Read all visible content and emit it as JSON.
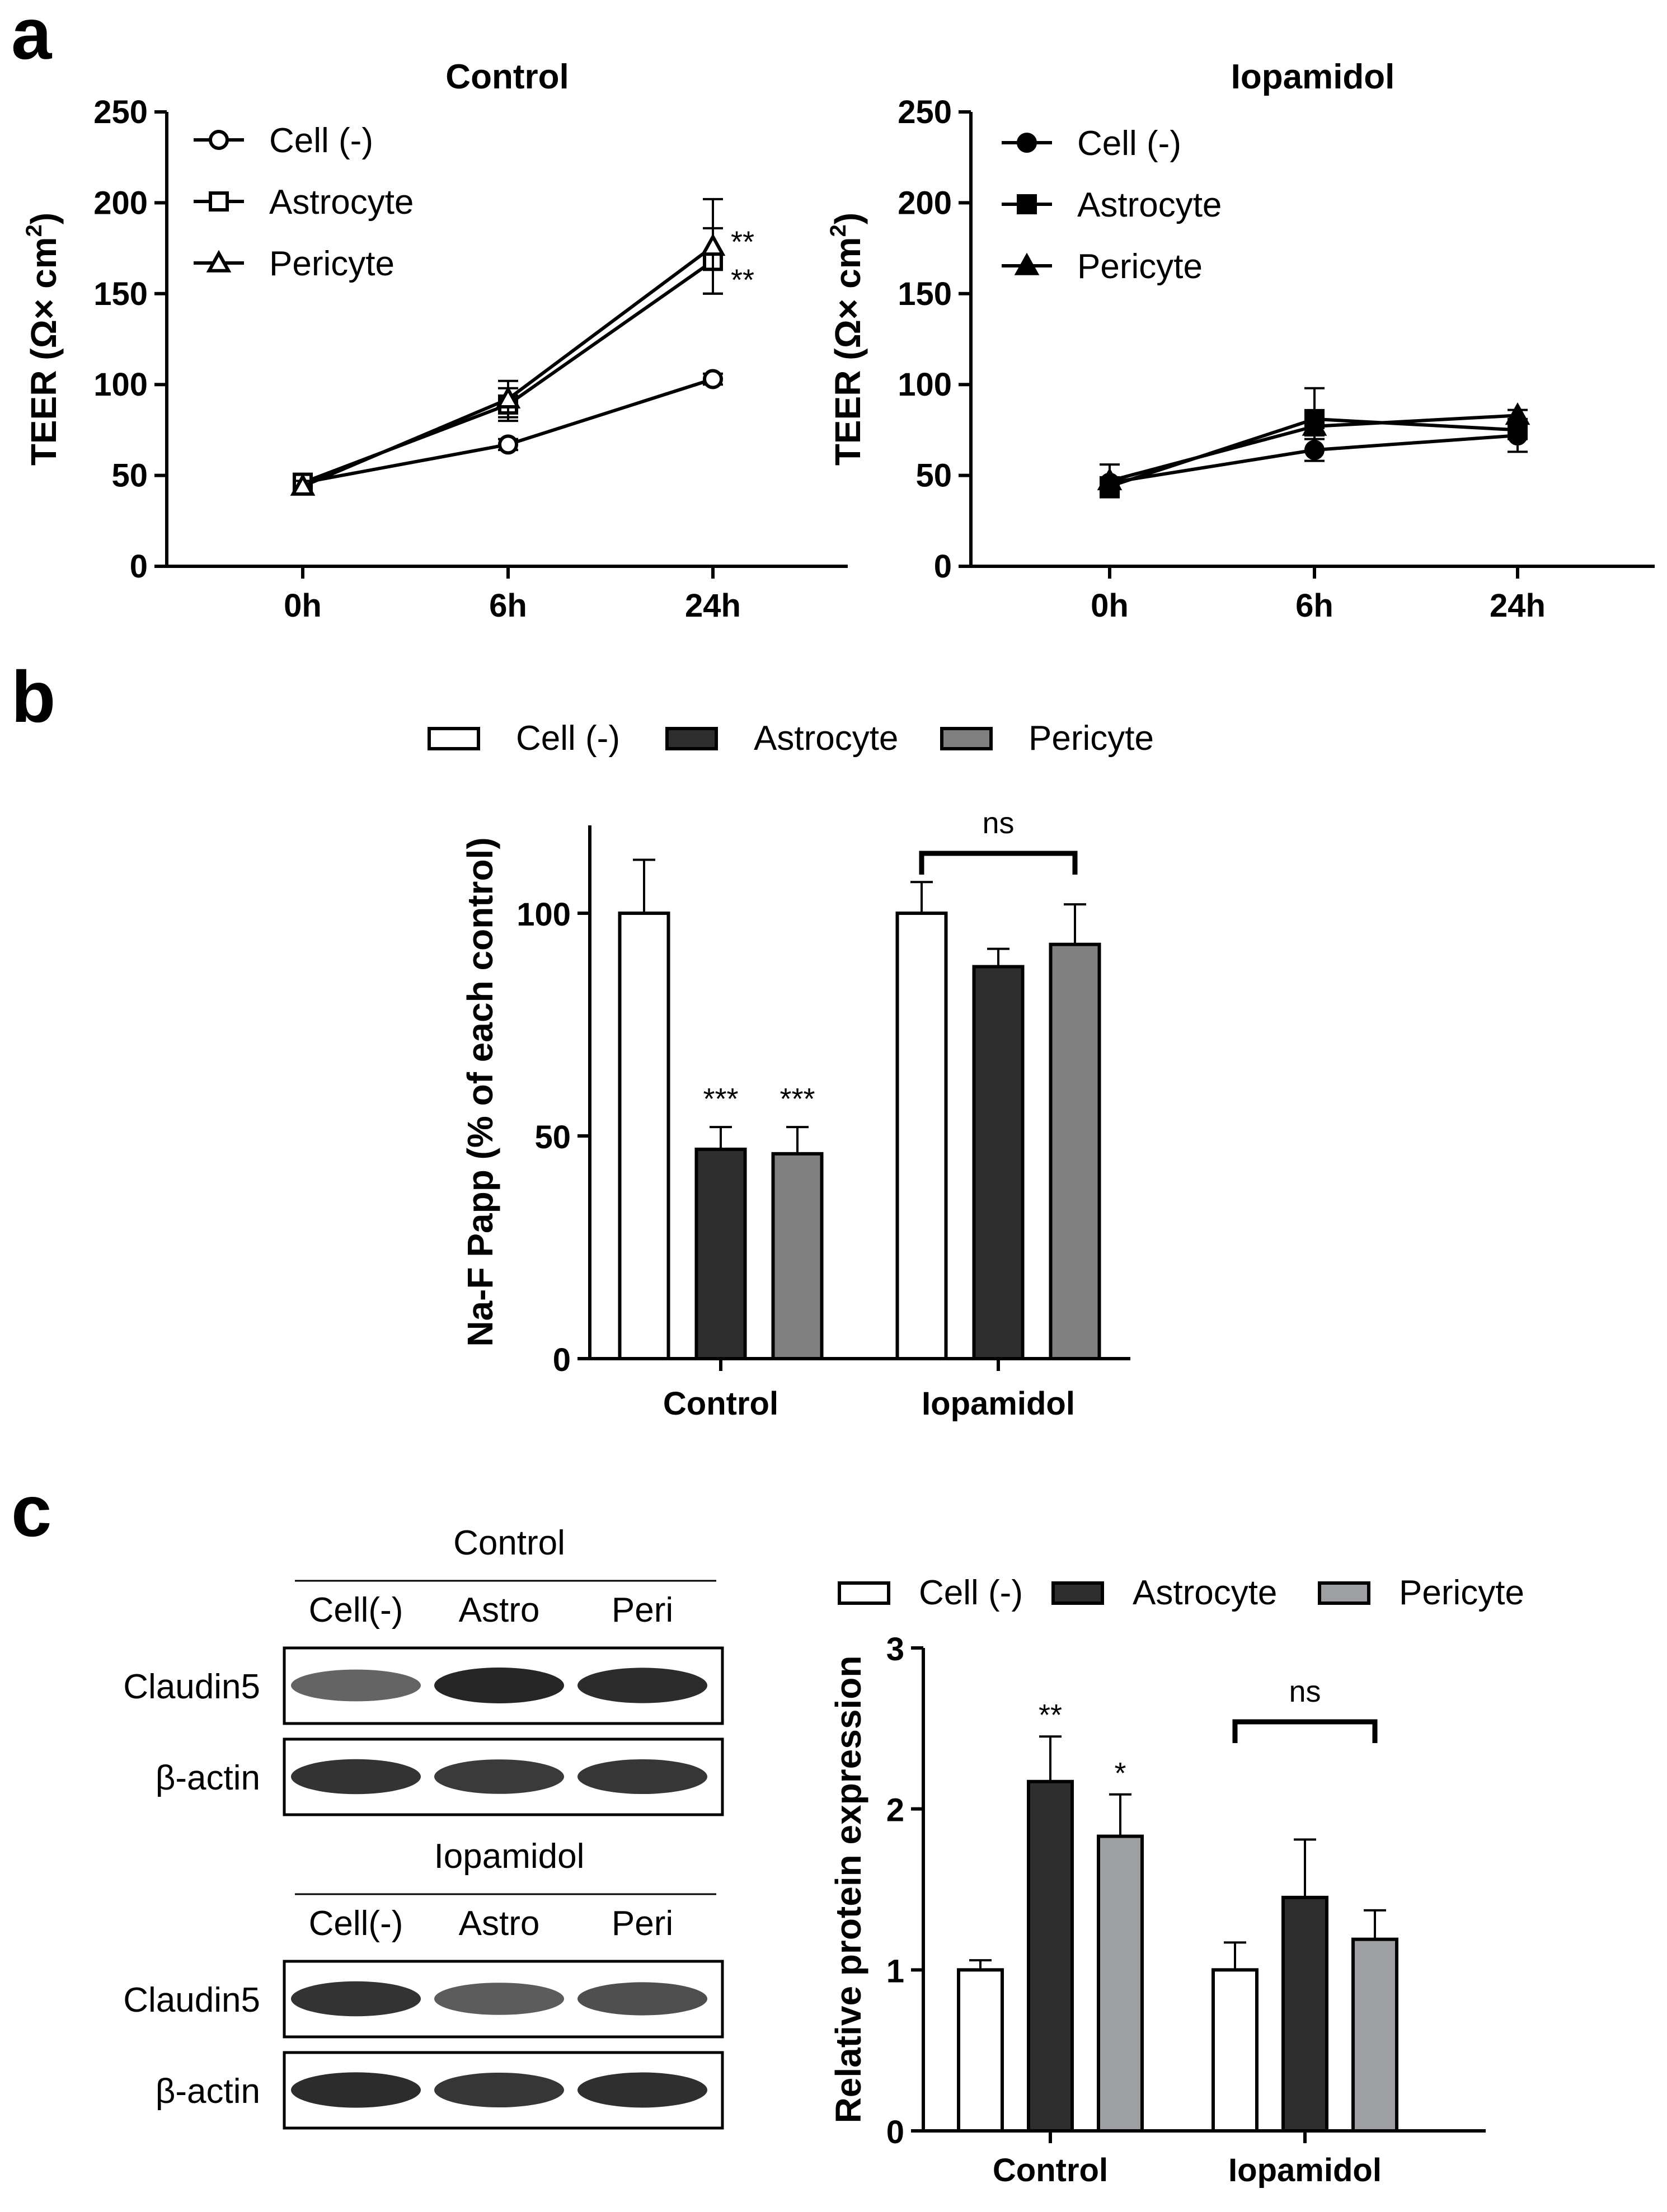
{
  "panels": {
    "a": "a",
    "b": "b",
    "c": "c"
  },
  "chart_data": [
    {
      "id": "a-control",
      "type": "line",
      "title": "Control",
      "ylabel": "TEER (Ω× cm",
      "ylabel_sup": "2",
      "ylabel_tail": ")",
      "categories": [
        "0h",
        "6h",
        "24h"
      ],
      "ylim": [
        0,
        250
      ],
      "yticks": [
        "0",
        "50",
        "100",
        "150",
        "200",
        "250"
      ],
      "series": [
        {
          "name": "Cell (-)",
          "marker": "circle",
          "filled": false,
          "values": [
            46,
            67,
            103
          ],
          "err": [
            3,
            3,
            3
          ]
        },
        {
          "name": "Astrocyte",
          "marker": "square",
          "filled": false,
          "values": [
            46,
            89,
            168
          ],
          "err": [
            3,
            9,
            18
          ]
        },
        {
          "name": "Pericyte",
          "marker": "triangle",
          "filled": false,
          "values": [
            44,
            92,
            176
          ],
          "err": [
            3,
            10,
            26
          ]
        }
      ],
      "annotations": [
        "**",
        "**"
      ]
    },
    {
      "id": "a-iopamidol",
      "type": "line",
      "title": "Iopamidol",
      "ylabel": "TEER (Ω× cm",
      "ylabel_sup": "2",
      "ylabel_tail": ")",
      "categories": [
        "0h",
        "6h",
        "24h"
      ],
      "ylim": [
        0,
        250
      ],
      "yticks": [
        "0",
        "50",
        "100",
        "150",
        "200",
        "250"
      ],
      "series": [
        {
          "name": "Cell (-)",
          "marker": "circle",
          "filled": true,
          "values": [
            46,
            64,
            72
          ],
          "err": [
            3,
            6,
            9
          ]
        },
        {
          "name": "Astrocyte",
          "marker": "square",
          "filled": true,
          "values": [
            44,
            81,
            75
          ],
          "err": [
            3,
            17,
            5
          ]
        },
        {
          "name": "Pericyte",
          "marker": "triangle",
          "filled": true,
          "values": [
            47,
            77,
            83
          ],
          "err": [
            9,
            5,
            3
          ]
        }
      ]
    },
    {
      "id": "b",
      "type": "bar",
      "ylabel": "Na-F Papp (% of each control)",
      "categories": [
        "Control",
        "Iopamidol"
      ],
      "ylim": [
        0,
        120
      ],
      "yticks": [
        "0",
        "50",
        "100"
      ],
      "series": [
        {
          "name": "Cell (-)",
          "color": "#ffffff",
          "values": [
            100,
            100
          ],
          "err": [
            12,
            7
          ]
        },
        {
          "name": "Astrocyte",
          "color": "#2e2e2e",
          "values": [
            47,
            88
          ],
          "err": [
            5,
            4
          ]
        },
        {
          "name": "Pericyte",
          "color": "#808080",
          "values": [
            46,
            93
          ],
          "err": [
            6,
            9
          ]
        }
      ],
      "annotations": [
        "***",
        "***",
        "ns"
      ]
    },
    {
      "id": "c-bar",
      "type": "bar",
      "ylabel": "Relative protein expression",
      "categories": [
        "Control",
        "Iopamidol"
      ],
      "ylim": [
        0,
        3
      ],
      "yticks": [
        "0",
        "1",
        "2",
        "3"
      ],
      "series": [
        {
          "name": "Cell (-)",
          "color": "#ffffff",
          "values": [
            1.0,
            1.0
          ],
          "err": [
            0.06,
            0.17
          ]
        },
        {
          "name": "Astrocyte",
          "color": "#2e2e2e",
          "values": [
            2.17,
            1.45
          ],
          "err": [
            0.28,
            0.36
          ]
        },
        {
          "name": "Pericyte",
          "color": "#9e9fa3",
          "values": [
            1.83,
            1.19
          ],
          "err": [
            0.26,
            0.18
          ]
        }
      ],
      "annotations": [
        "**",
        "*",
        "ns"
      ]
    }
  ],
  "blots": {
    "groups": [
      {
        "title": "Control",
        "lanes": [
          "Cell(-)",
          "Astro",
          "Peri"
        ],
        "rows": [
          {
            "label": "Claudin5",
            "intensity": [
              0.55,
              1.0,
              0.95
            ]
          },
          {
            "label": "β-actin",
            "intensity": [
              0.9,
              0.85,
              0.88
            ]
          }
        ]
      },
      {
        "title": "Iopamidol",
        "lanes": [
          "Cell(-)",
          "Astro",
          "Peri"
        ],
        "rows": [
          {
            "label": "Claudin5",
            "intensity": [
              0.9,
              0.6,
              0.7
            ]
          },
          {
            "label": "β-actin",
            "intensity": [
              0.95,
              0.88,
              0.93
            ]
          }
        ]
      }
    ]
  }
}
